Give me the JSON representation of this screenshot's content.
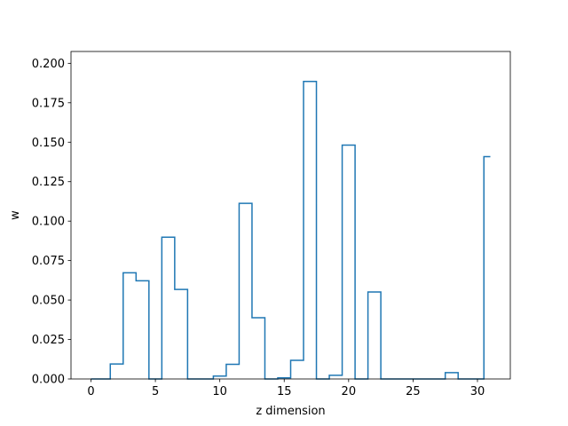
{
  "chart_data": {
    "type": "step",
    "title": "",
    "xlabel": "z dimension",
    "ylabel": "w",
    "xlim": [
      -1.55,
      32.55
    ],
    "ylim": [
      0.0,
      0.2075
    ],
    "xticks": [
      0,
      5,
      10,
      15,
      20,
      25,
      30
    ],
    "xtick_labels": [
      "0",
      "5",
      "10",
      "15",
      "20",
      "25",
      "30"
    ],
    "yticks": [
      0.0,
      0.025,
      0.05,
      0.075,
      0.1,
      0.125,
      0.15,
      0.175,
      0.2
    ],
    "ytick_labels": [
      "0.000",
      "0.025",
      "0.050",
      "0.075",
      "0.100",
      "0.125",
      "0.150",
      "0.175",
      "0.200"
    ],
    "step_where": "mid",
    "series_color": "#1f77b4",
    "x": [
      0,
      1,
      2,
      3,
      4,
      5,
      6,
      7,
      8,
      9,
      10,
      11,
      12,
      13,
      14,
      15,
      16,
      17,
      18,
      19,
      20,
      21,
      22,
      23,
      24,
      25,
      26,
      27,
      28,
      29,
      30,
      31
    ],
    "values": [
      0.0,
      0.0,
      0.0095,
      0.0673,
      0.0622,
      0.0,
      0.0898,
      0.0567,
      0.0,
      0.0,
      0.0018,
      0.0093,
      0.1113,
      0.0388,
      0.0,
      0.0007,
      0.0118,
      0.1885,
      0.0,
      0.0023,
      0.1482,
      0.0,
      0.0551,
      0.0,
      0.0,
      0.0,
      0.0,
      0.0,
      0.004,
      0.0,
      0.0,
      0.1409
    ],
    "grid": false,
    "legend": "none"
  }
}
